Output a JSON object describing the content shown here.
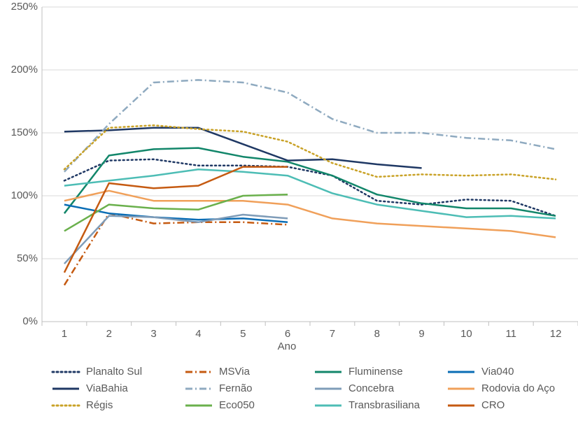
{
  "chart_data": {
    "type": "line",
    "xlabel": "Ano",
    "categories": [
      "1",
      "2",
      "3",
      "4",
      "5",
      "6",
      "7",
      "8",
      "9",
      "10",
      "11",
      "12"
    ],
    "ylim": [
      0,
      250
    ],
    "yticks": [
      {
        "value": 0,
        "label": "0%"
      },
      {
        "value": 50,
        "label": "50%"
      },
      {
        "value": 100,
        "label": "100%"
      },
      {
        "value": 150,
        "label": "150%"
      },
      {
        "value": 200,
        "label": "200%"
      },
      {
        "value": 250,
        "label": "250%"
      }
    ],
    "grid": true,
    "legend": "bottom",
    "series": [
      {
        "name": "Planalto Sul",
        "color": "#1f3864",
        "style": "dotted",
        "values": [
          112,
          128,
          129,
          124,
          124,
          123,
          116,
          96,
          93,
          97,
          96,
          84
        ]
      },
      {
        "name": "MSVia",
        "color": "#c55a11",
        "style": "dashdot",
        "values": [
          29,
          86,
          78,
          79,
          79,
          77,
          null,
          null,
          null,
          null,
          null,
          null
        ]
      },
      {
        "name": "Fluminense",
        "color": "#12866a",
        "style": "solid",
        "values": [
          86,
          132,
          137,
          138,
          131,
          127,
          116,
          101,
          94,
          90,
          90,
          84
        ]
      },
      {
        "name": "Via040",
        "color": "#0a6db5",
        "style": "solid",
        "values": [
          93,
          86,
          83,
          81,
          82,
          79,
          null,
          null,
          null,
          null,
          null,
          null
        ]
      },
      {
        "name": "ViaBahia",
        "color": "#1f3864",
        "style": "solid",
        "values": [
          151,
          152,
          154,
          154,
          141,
          128,
          129,
          125,
          122,
          null,
          null,
          null
        ]
      },
      {
        "name": "Fernão",
        "color": "#8faac0",
        "style": "dashdot",
        "values": [
          119,
          157,
          190,
          192,
          190,
          182,
          161,
          150,
          150,
          146,
          144,
          137
        ]
      },
      {
        "name": "Concebra",
        "color": "#7f9cb8",
        "style": "solid",
        "values": [
          46,
          84,
          83,
          79,
          85,
          82,
          null,
          null,
          null,
          null,
          null,
          null
        ]
      },
      {
        "name": "Rodovia do Aço",
        "color": "#f0a05a",
        "style": "solid",
        "values": [
          96,
          104,
          96,
          96,
          96,
          93,
          82,
          78,
          76,
          74,
          72,
          67
        ]
      },
      {
        "name": "Régis",
        "color": "#c9a227",
        "style": "dotted",
        "values": [
          121,
          154,
          156,
          153,
          151,
          143,
          126,
          115,
          117,
          116,
          117,
          113
        ]
      },
      {
        "name": "Eco050",
        "color": "#6ab04c",
        "style": "solid",
        "values": [
          72,
          93,
          90,
          89,
          100,
          101,
          null,
          null,
          null,
          null,
          null,
          null
        ]
      },
      {
        "name": "Transbrasiliana",
        "color": "#4dbdb5",
        "style": "solid",
        "values": [
          108,
          112,
          116,
          121,
          119,
          116,
          102,
          93,
          88,
          83,
          84,
          82
        ]
      },
      {
        "name": "CRO",
        "color": "#c55a11",
        "style": "solid",
        "values": [
          39,
          110,
          106,
          108,
          123,
          123,
          null,
          null,
          null,
          null,
          null,
          null
        ]
      }
    ]
  }
}
